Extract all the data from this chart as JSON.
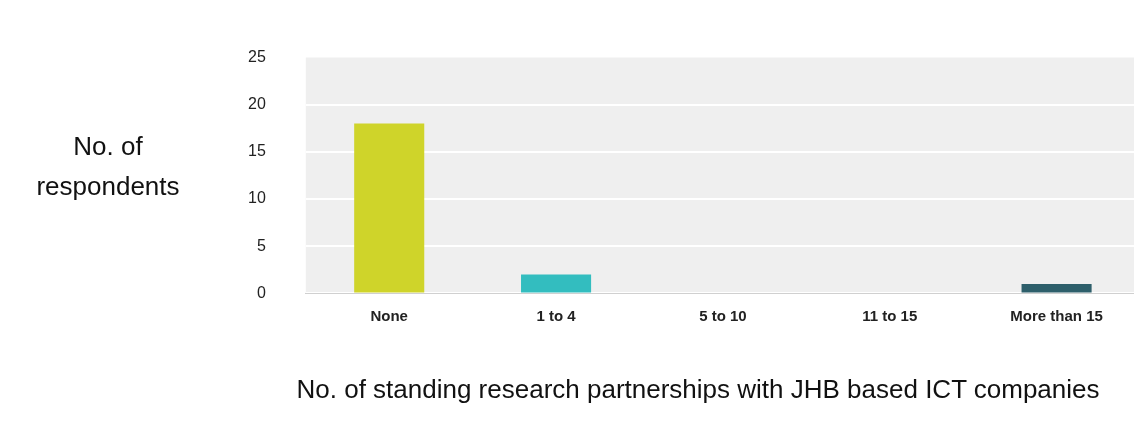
{
  "chart_data": {
    "type": "bar",
    "xlabel": "No. of standing research partnerships with JHB based ICT companies",
    "ylabel": "No. of respondents",
    "categories": [
      "None",
      "1 to 4",
      "5 to 10",
      "11 to 15",
      "More than 15"
    ],
    "values": [
      18,
      2,
      0,
      0,
      1
    ],
    "colors": [
      "#cfd42a",
      "#33bdbf",
      null,
      null,
      "#2e5f6b"
    ],
    "ylim": [
      0,
      25
    ],
    "yticks": [
      0,
      5,
      10,
      15,
      20,
      25
    ],
    "grid": "y",
    "legend": false
  }
}
